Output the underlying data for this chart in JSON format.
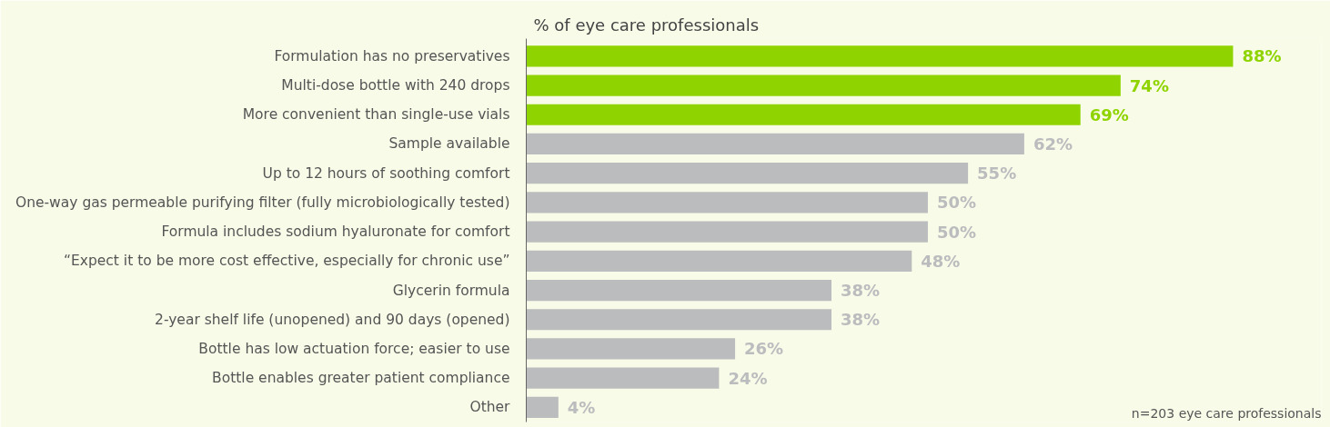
{
  "chart_data": {
    "type": "bar",
    "orientation": "horizontal",
    "title": "% of eye care professionals",
    "categories": [
      "Formulation has no preservatives",
      "Multi-dose bottle with 240 drops",
      "More convenient than single-use vials",
      "Sample available",
      "Up to 12 hours of soothing comfort",
      "One-way gas permeable purifying filter (fully microbiologically tested)",
      "Formula includes sodium hyaluronate for comfort",
      "“Expect it to be more cost effective, especially for chronic use”",
      "Glycerin formula",
      "2-year shelf life (unopened) and 90 days (opened)",
      "Bottle has low actuation force; easier to use",
      "Bottle enables greater patient compliance",
      "Other"
    ],
    "values": [
      88,
      74,
      69,
      62,
      55,
      50,
      50,
      48,
      38,
      38,
      26,
      24,
      4
    ],
    "value_labels": [
      "88%",
      "74%",
      "69%",
      "62%",
      "55%",
      "50%",
      "50%",
      "48%",
      "38%",
      "38%",
      "26%",
      "24%",
      "4%"
    ],
    "colors": [
      "#8fd400",
      "#8fd400",
      "#8fd400",
      "#bbbcbe",
      "#bbbcbe",
      "#bbbcbe",
      "#bbbcbe",
      "#bbbcbe",
      "#bbbcbe",
      "#bbbcbe",
      "#bbbcbe",
      "#bbbcbe",
      "#bbbcbe"
    ],
    "annotations": [
      "n=203 eye care professionals"
    ],
    "grid": false,
    "tick_labels": "y"
  }
}
